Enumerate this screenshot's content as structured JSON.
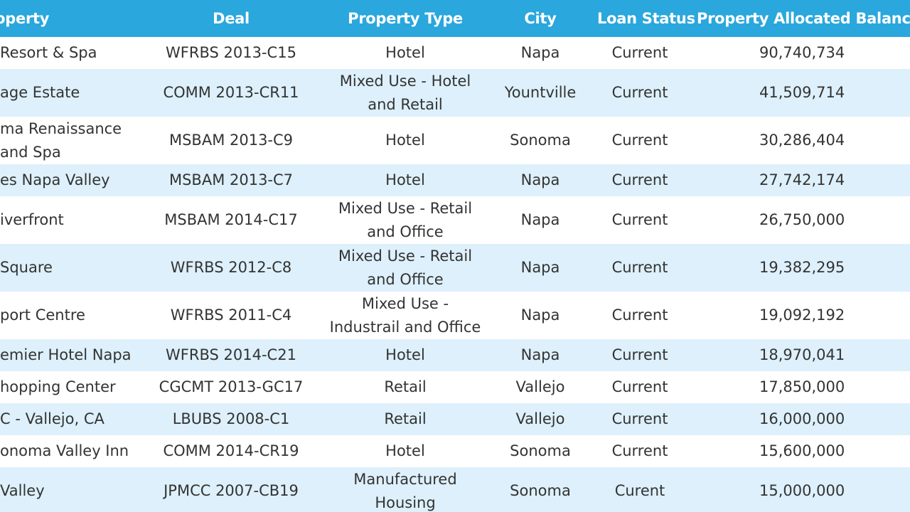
{
  "headers": {
    "property": "Property",
    "deal": "Deal",
    "property_type": "Property Type",
    "city": "City",
    "loan_status": "Loan Status",
    "balance": "Property Allocated Balance"
  },
  "rows": [
    {
      "property": "Resort & Spa",
      "deal": "WFRBS 2013-C15",
      "type": "Hotel",
      "city": "Napa",
      "status": "Current",
      "balance": "90,740,734"
    },
    {
      "property": "age Estate",
      "deal": "COMM 2013-CR11",
      "type": "Mixed Use - Hotel and Retail",
      "city": "Yountville",
      "status": "Current",
      "balance": "41,509,714"
    },
    {
      "property": "ma Renaissance and Spa",
      "deal": "MSBAM 2013-C9",
      "type": "Hotel",
      "city": "Sonoma",
      "status": "Current",
      "balance": "30,286,404"
    },
    {
      "property": "es Napa Valley",
      "deal": "MSBAM 2013-C7",
      "type": "Hotel",
      "city": "Napa",
      "status": "Current",
      "balance": "27,742,174"
    },
    {
      "property": "iverfront",
      "deal": "MSBAM 2014-C17",
      "type": "Mixed Use - Retail and Office",
      "city": "Napa",
      "status": "Current",
      "balance": "26,750,000"
    },
    {
      "property": "Square",
      "deal": "WFRBS 2012-C8",
      "type": "Mixed Use - Retail and Office",
      "city": "Napa",
      "status": "Current",
      "balance": "19,382,295"
    },
    {
      "property": "port Centre",
      "deal": "WFRBS 2011-C4",
      "type": "Mixed Use - Industrail and Office",
      "city": "Napa",
      "status": "Current",
      "balance": "19,092,192"
    },
    {
      "property": "emier Hotel Napa",
      "deal": "WFRBS 2014-C21",
      "type": "Hotel",
      "city": "Napa",
      "status": "Current",
      "balance": "18,970,041"
    },
    {
      "property": "hopping Center",
      "deal": "CGCMT 2013-GC17",
      "type": "Retail",
      "city": "Vallejo",
      "status": "Current",
      "balance": "17,850,000"
    },
    {
      "property": "C - Vallejo, CA",
      "deal": "LBUBS 2008-C1",
      "type": "Retail",
      "city": "Vallejo",
      "status": "Current",
      "balance": "16,000,000"
    },
    {
      "property": "onoma Valley Inn",
      "deal": "COMM 2014-CR19",
      "type": "Hotel",
      "city": "Sonoma",
      "status": "Current",
      "balance": "15,600,000"
    },
    {
      "property": "Valley",
      "deal": "JPMCC 2007-CB19",
      "type": "Manufactured Housing",
      "city": "Sonoma",
      "status": "Curent",
      "balance": "15,000,000"
    }
  ],
  "colors": {
    "header_bg": "#2aa7dc",
    "header_text": "#ffffff",
    "stripe": "#ddf0fb",
    "cell_text": "#333333"
  }
}
